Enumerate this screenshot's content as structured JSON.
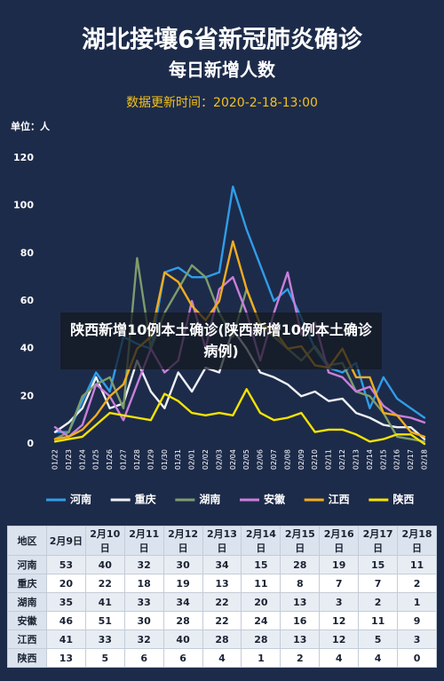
{
  "chart_data": {
    "type": "line",
    "title": "湖北接壤6省新冠肺炎确诊",
    "subtitle": "每日新增人数",
    "note": "数据更新时间：2020-2-18-13:00",
    "y_label": "单位：人",
    "categories": [
      "01/22",
      "01/23",
      "01/24",
      "01/25",
      "01/26",
      "01/27",
      "01/28",
      "01/29",
      "01/30",
      "01/31",
      "02/01",
      "02/02",
      "02/03",
      "02/04",
      "02/05",
      "02/06",
      "02/07",
      "02/08",
      "02/09",
      "02/10",
      "02/11",
      "02/12",
      "02/13",
      "02/14",
      "02/15",
      "02/16",
      "02/17",
      "02/18"
    ],
    "ylim": [
      0,
      120
    ],
    "yticks": [
      0,
      20,
      40,
      60,
      80,
      100,
      120
    ],
    "grid": false,
    "series": [
      {
        "name": "河南",
        "color": "#2f9de8",
        "values": [
          5,
          5,
          18,
          30,
          22,
          45,
          42,
          40,
          72,
          74,
          70,
          70,
          72,
          108,
          90,
          75,
          60,
          65,
          53,
          40,
          32,
          30,
          34,
          15,
          28,
          19,
          15,
          11
        ]
      },
      {
        "name": "重庆",
        "color": "#eef0f4",
        "values": [
          5,
          9,
          15,
          28,
          15,
          17,
          35,
          22,
          15,
          30,
          22,
          32,
          30,
          48,
          40,
          30,
          28,
          25,
          20,
          22,
          18,
          19,
          13,
          11,
          8,
          7,
          7,
          2
        ]
      },
      {
        "name": "湖南",
        "color": "#7d9c6c",
        "values": [
          2,
          5,
          20,
          25,
          28,
          15,
          78,
          40,
          55,
          65,
          75,
          70,
          55,
          45,
          65,
          50,
          45,
          40,
          35,
          41,
          33,
          34,
          22,
          20,
          13,
          3,
          2,
          1
        ]
      },
      {
        "name": "安徽",
        "color": "#c97fdb",
        "values": [
          7,
          3,
          8,
          25,
          20,
          10,
          25,
          40,
          30,
          35,
          60,
          40,
          65,
          70,
          55,
          35,
          55,
          72,
          46,
          51,
          30,
          28,
          22,
          24,
          16,
          12,
          11,
          9
        ]
      },
      {
        "name": "江西",
        "color": "#f2ad1e",
        "values": [
          2,
          3,
          6,
          12,
          20,
          25,
          40,
          45,
          72,
          68,
          58,
          52,
          60,
          85,
          65,
          50,
          48,
          40,
          41,
          33,
          32,
          40,
          28,
          28,
          13,
          12,
          5,
          3
        ]
      },
      {
        "name": "陕西",
        "color": "#f5e300",
        "values": [
          1,
          2,
          3,
          8,
          13,
          12,
          11,
          10,
          21,
          18,
          13,
          12,
          13,
          12,
          23,
          13,
          10,
          11,
          13,
          5,
          6,
          6,
          4,
          1,
          2,
          4,
          4,
          0
        ]
      }
    ]
  },
  "overlay_caption": "陕西新增10例本土确诊(陕西新增10例本土确诊病例)",
  "table": {
    "header": [
      "地区",
      "2月9日",
      "2月10日",
      "2月11日",
      "2月12日",
      "2月13日",
      "2月14日",
      "2月15日",
      "2月16日",
      "2月17日",
      "2月18日"
    ],
    "rows": [
      [
        "河南",
        53,
        40,
        32,
        30,
        34,
        15,
        28,
        19,
        15,
        11
      ],
      [
        "重庆",
        20,
        22,
        18,
        19,
        13,
        11,
        8,
        7,
        7,
        2
      ],
      [
        "湖南",
        35,
        41,
        33,
        34,
        22,
        20,
        13,
        3,
        2,
        1
      ],
      [
        "安徽",
        46,
        51,
        30,
        28,
        22,
        24,
        16,
        12,
        11,
        9
      ],
      [
        "江西",
        41,
        33,
        32,
        40,
        28,
        28,
        13,
        12,
        5,
        3
      ],
      [
        "陕西",
        13,
        5,
        6,
        6,
        4,
        1,
        2,
        4,
        4,
        0
      ]
    ]
  }
}
